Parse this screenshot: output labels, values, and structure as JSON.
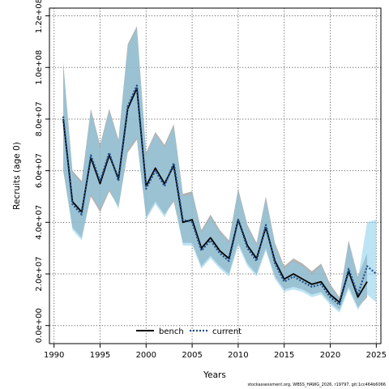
{
  "chart_data": {
    "type": "area",
    "xlabel": "Years",
    "ylabel": "Recruits (age 0)",
    "xlim": [
      1989.5,
      2025.5
    ],
    "ylim": [
      -7000000,
      123000000
    ],
    "x_ticks": [
      1990,
      1995,
      2000,
      2005,
      2010,
      2015,
      2020,
      2025
    ],
    "x_tick_labels": [
      "1990",
      "1995",
      "2000",
      "2005",
      "2010",
      "2015",
      "2020",
      "2025"
    ],
    "y_ticks": [
      0,
      20000000,
      40000000,
      60000000,
      80000000,
      100000000,
      120000000
    ],
    "y_tick_labels": [
      "0.0e+00",
      "2.0e+07",
      "4.0e+07",
      "6.0e+07",
      "8.0e+07",
      "1.0e+08",
      "1.2e+08"
    ],
    "grid": true,
    "legend_position": "bottom",
    "x": [
      1991,
      1992,
      1993,
      1994,
      1995,
      1996,
      1997,
      1998,
      1999,
      2000,
      2001,
      2002,
      2003,
      2004,
      2005,
      2006,
      2007,
      2008,
      2009,
      2010,
      2011,
      2012,
      2013,
      2014,
      2015,
      2016,
      2017,
      2018,
      2019,
      2020,
      2021,
      2022,
      2023,
      2024,
      2025
    ],
    "series": [
      {
        "name": "bench",
        "style": "solid",
        "color": "#000000",
        "band_color": "#999999",
        "values": [
          80000000,
          48000000,
          44000000,
          65000000,
          55000000,
          66000000,
          57000000,
          84000000,
          92000000,
          54000000,
          61000000,
          55000000,
          62000000,
          40000000,
          41000000,
          30000000,
          34000000,
          29000000,
          26000000,
          41000000,
          31000000,
          26000000,
          38000000,
          25000000,
          18000000,
          20000000,
          18000000,
          16000000,
          17000000,
          12000000,
          9000000,
          21000000,
          11000000,
          17000000,
          null
        ],
        "lower": [
          60000000,
          38000000,
          34000000,
          50000000,
          44000000,
          52000000,
          46000000,
          67000000,
          72000000,
          42000000,
          48000000,
          43000000,
          48000000,
          32000000,
          32000000,
          23000000,
          27000000,
          23000000,
          20000000,
          32000000,
          24000000,
          20000000,
          30000000,
          19000000,
          14000000,
          15000000,
          14000000,
          12000000,
          13000000,
          9000000,
          6000000,
          15000000,
          7000000,
          11000000,
          null
        ],
        "upper": [
          102000000,
          60000000,
          56000000,
          84000000,
          70000000,
          84000000,
          72000000,
          109000000,
          116000000,
          67000000,
          75000000,
          70000000,
          78000000,
          51000000,
          52000000,
          37000000,
          43000000,
          37000000,
          33000000,
          53000000,
          39000000,
          32000000,
          50000000,
          32000000,
          23000000,
          26000000,
          24000000,
          21000000,
          24000000,
          16000000,
          11000000,
          33000000,
          19000000,
          28000000,
          null
        ]
      },
      {
        "name": "current",
        "style": "dotted",
        "color": "#1f4e8c",
        "band_color": "#87ceeb",
        "values": [
          81000000,
          47000000,
          43000000,
          66000000,
          56000000,
          67000000,
          56000000,
          85000000,
          93000000,
          53000000,
          60000000,
          54000000,
          63000000,
          41000000,
          40000000,
          29000000,
          33000000,
          28000000,
          25000000,
          41000000,
          30000000,
          25000000,
          39000000,
          24000000,
          17000000,
          19000000,
          17000000,
          15000000,
          16000000,
          11000000,
          8000000,
          22000000,
          12000000,
          23000000,
          20000000
        ],
        "lower": [
          61000000,
          37000000,
          33000000,
          51000000,
          45000000,
          53000000,
          45000000,
          68000000,
          73000000,
          41000000,
          47000000,
          42000000,
          49000000,
          31000000,
          31000000,
          22000000,
          26000000,
          22000000,
          19000000,
          31000000,
          23000000,
          19000000,
          29000000,
          18000000,
          13000000,
          14000000,
          13000000,
          11000000,
          12000000,
          8000000,
          5000000,
          14000000,
          6000000,
          12000000,
          9000000
        ],
        "upper": [
          101000000,
          59000000,
          55000000,
          83000000,
          69000000,
          83000000,
          71000000,
          108000000,
          115000000,
          66000000,
          74000000,
          69000000,
          77000000,
          50000000,
          51000000,
          36000000,
          42000000,
          36000000,
          32000000,
          52000000,
          38000000,
          31000000,
          49000000,
          31000000,
          22000000,
          25000000,
          23000000,
          20000000,
          23000000,
          15000000,
          10000000,
          32000000,
          18000000,
          40000000,
          41000000
        ]
      }
    ]
  },
  "footnote": "stockassessment.org, WBSS_HAWG_2026, r19797, git:1cc464b6066"
}
